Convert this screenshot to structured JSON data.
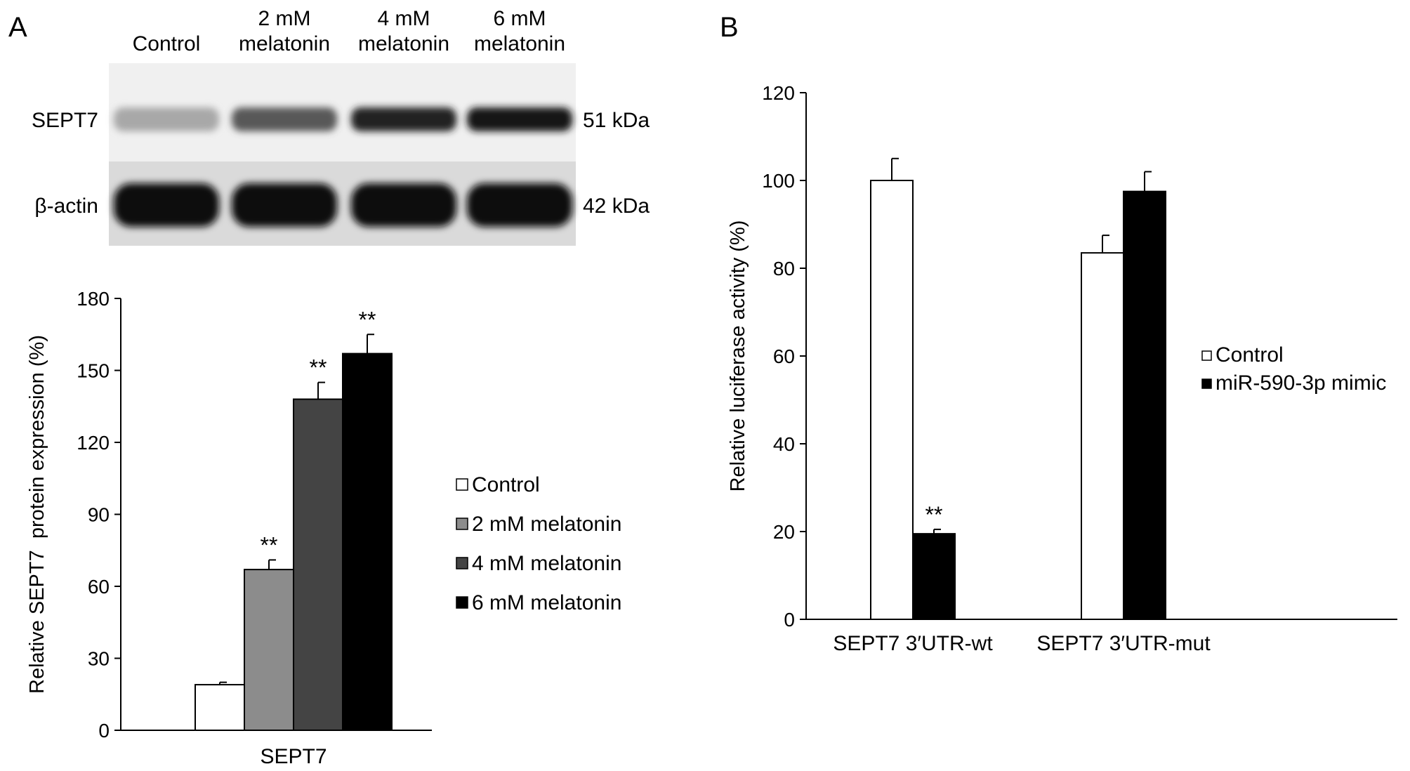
{
  "panel_a": {
    "letter": "A",
    "blot": {
      "lanes": [
        {
          "line1": "",
          "line2": "Control"
        },
        {
          "line1": "2 mM",
          "line2": "melatonin"
        },
        {
          "line1": "4 mM",
          "line2": "melatonin"
        },
        {
          "line1": "6 mM",
          "line2": "melatonin"
        }
      ],
      "rows": [
        {
          "label": "SEPT7",
          "size": "51 kDa",
          "intensity": [
            0.3,
            0.65,
            0.9,
            0.95
          ]
        },
        {
          "label": "β-actin",
          "size": "42 kDa",
          "intensity": [
            1,
            1,
            1,
            1
          ]
        }
      ]
    }
  },
  "panel_b": {
    "letter": "B"
  },
  "chart_data": [
    {
      "type": "bar",
      "panel": "A",
      "categories": [
        "SEPT7"
      ],
      "xlabel": "",
      "ylabel": "Relative SEPT7  protein expression (%)",
      "ylim": [
        0,
        180
      ],
      "yticks": [
        "0",
        "30",
        "60",
        "90",
        "120",
        "150",
        "180"
      ],
      "grid": false,
      "legend_position": "right",
      "series": [
        {
          "name": "Control",
          "values": [
            19
          ],
          "errors": [
            1
          ],
          "annotation": "",
          "color": "#ffffff"
        },
        {
          "name": "2 mM melatonin",
          "values": [
            67
          ],
          "errors": [
            4
          ],
          "annotation": "**",
          "color": "#8c8c8c"
        },
        {
          "name": "4 mM melatonin",
          "values": [
            138
          ],
          "errors": [
            7
          ],
          "annotation": "**",
          "color": "#444444"
        },
        {
          "name": "6 mM melatonin",
          "values": [
            157
          ],
          "errors": [
            8
          ],
          "annotation": "**",
          "color": "#000000"
        }
      ]
    },
    {
      "type": "bar",
      "panel": "B",
      "categories": [
        "SEPT7 3′UTR-wt",
        "SEPT7 3′UTR-mut"
      ],
      "xlabel": "",
      "ylabel": "Relative luciferase activity (%)",
      "ylim": [
        0,
        120
      ],
      "yticks": [
        "0",
        "20",
        "40",
        "60",
        "80",
        "100",
        "120"
      ],
      "grid": false,
      "legend_position": "right",
      "series": [
        {
          "name": "Control",
          "values": [
            100,
            83.5
          ],
          "errors": [
            5,
            4
          ],
          "annotations": [
            "",
            ""
          ],
          "color": "#ffffff"
        },
        {
          "name": "miR-590-3p mimic",
          "values": [
            19.5,
            97.5
          ],
          "errors": [
            1,
            4.5
          ],
          "annotations": [
            "**",
            ""
          ],
          "color": "#000000"
        }
      ]
    }
  ]
}
